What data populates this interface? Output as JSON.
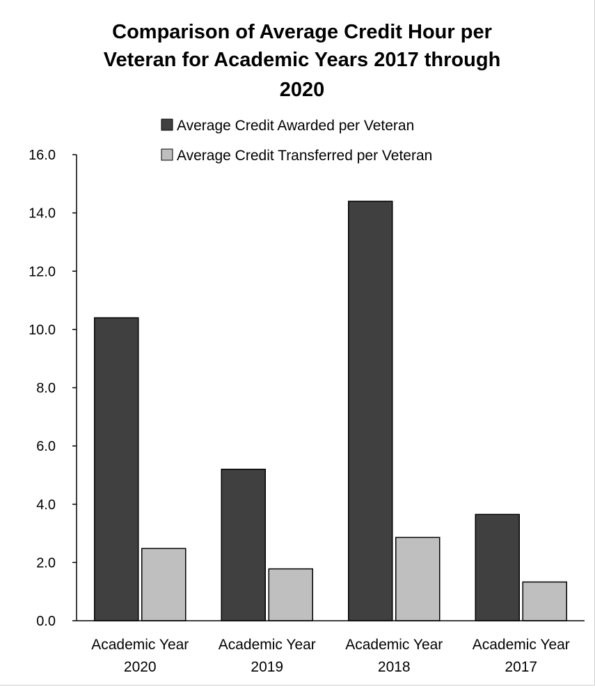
{
  "chart_data": {
    "type": "bar",
    "title_lines": [
      "Comparison of Average Credit Hour per",
      "Veteran for Academic Years 2017 through",
      "2020"
    ],
    "categories": [
      [
        "Academic Year",
        "2020"
      ],
      [
        "Academic Year",
        "2019"
      ],
      [
        "Academic Year",
        "2018"
      ],
      [
        "Academic Year",
        "2017"
      ]
    ],
    "series": [
      {
        "name": "Average Credit Awarded per Veteran",
        "values": [
          10.4,
          5.2,
          14.4,
          3.65
        ],
        "color": "#404040"
      },
      {
        "name": "Average Credit Transferred per Veteran",
        "values": [
          2.48,
          1.78,
          2.86,
          1.33
        ],
        "color": "#bfbfbf"
      }
    ],
    "ylim": [
      0,
      16
    ],
    "yticks": [
      "0.0",
      "2.0",
      "4.0",
      "6.0",
      "8.0",
      "10.0",
      "12.0",
      "14.0",
      "16.0"
    ],
    "grid": false,
    "legend_position": "top-right"
  }
}
